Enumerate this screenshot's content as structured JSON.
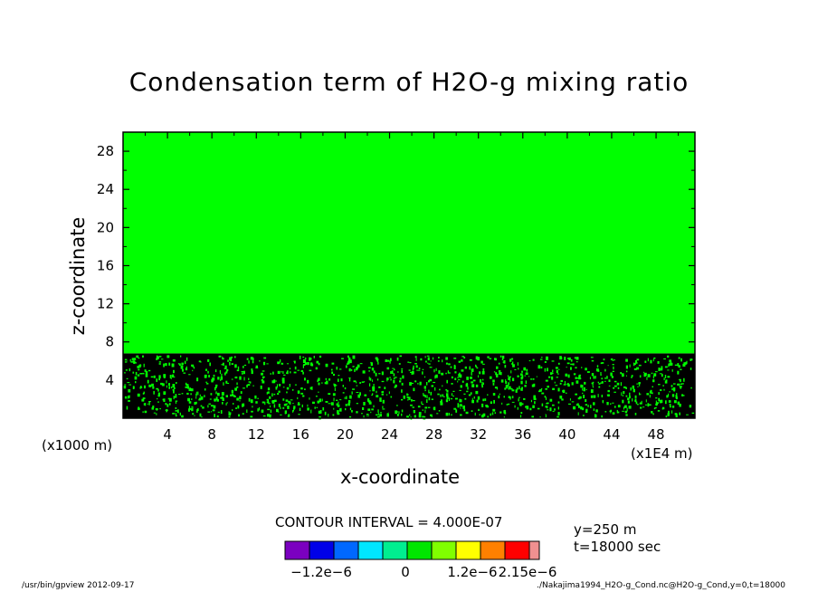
{
  "chart_data": {
    "type": "heatmap",
    "title": "Condensation term of H2O-g mixing ratio",
    "xlabel": "x-coordinate",
    "ylabel": "z-coordinate",
    "x_unit": "(x1E4 m)",
    "y_unit": "(x1000 m)",
    "xlim": [
      0,
      51.5
    ],
    "ylim": [
      0,
      30
    ],
    "x_ticks": [
      4,
      8,
      12,
      16,
      20,
      24,
      28,
      32,
      36,
      40,
      44,
      48
    ],
    "y_ticks": [
      4,
      8,
      12,
      16,
      20,
      24,
      28
    ],
    "regions": [
      {
        "z_range": [
          0,
          6.8
        ],
        "pattern": "noisy",
        "fill": "#000000",
        "speckle": "#00ff00"
      },
      {
        "z_range": [
          6.8,
          30
        ],
        "pattern": "uniform",
        "fill": "#00ff00"
      }
    ],
    "contour_interval": "CONTOUR INTERVAL = 4.000E-07",
    "colorbar": {
      "colors": [
        "#7b00c0",
        "#0000e8",
        "#0068ff",
        "#00e6ff",
        "#00ee90",
        "#00e600",
        "#80ff00",
        "#ffff00",
        "#ff8000",
        "#ff0000",
        "#f09090"
      ],
      "labels": [
        "−1.2e−6",
        "0",
        "1.2e−6",
        "2.15e−6"
      ]
    },
    "annotations": {
      "y_position": "y=250 m",
      "time": "t=18000 sec"
    }
  },
  "footer": {
    "left": "/usr/bin/gpview   2012-09-17",
    "right": "./Nakajima1994_H2O-g_Cond.nc@H2O-g_Cond,y=0,t=18000"
  }
}
